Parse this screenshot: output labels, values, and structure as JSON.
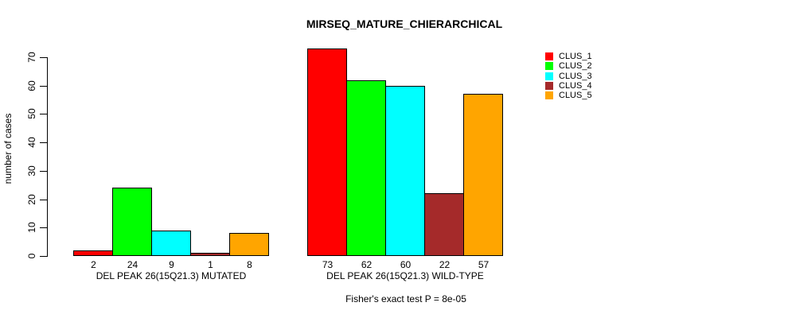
{
  "title": "MIRSEQ_MATURE_CHIERARCHICAL",
  "chart_data": {
    "type": "bar",
    "title": "MIRSEQ_MATURE_CHIERARCHICAL",
    "ylabel": "number of cases",
    "ylim": [
      0,
      70
    ],
    "yticks": [
      0,
      10,
      20,
      30,
      40,
      50,
      60,
      70
    ],
    "series_names": [
      "CLUS_1",
      "CLUS_2",
      "CLUS_3",
      "CLUS_4",
      "CLUS_5"
    ],
    "colors": [
      "#FF0000",
      "#00FF00",
      "#00FFFF",
      "#A52A2A",
      "#FFA500"
    ],
    "groups": [
      {
        "label": "DEL PEAK 26(15Q21.3) MUTATED",
        "values": [
          2,
          24,
          9,
          1,
          8
        ]
      },
      {
        "label": "DEL PEAK 26(15Q21.3) WILD-TYPE",
        "values": [
          73,
          62,
          60,
          22,
          57
        ]
      }
    ],
    "legend": {
      "position": "top-right",
      "entries": [
        "CLUS_1",
        "CLUS_2",
        "CLUS_3",
        "CLUS_4",
        "CLUS_5"
      ]
    },
    "footnote": "Fisher's exact test P = 8e-05",
    "grid": false,
    "background": "#FFFFFF"
  }
}
